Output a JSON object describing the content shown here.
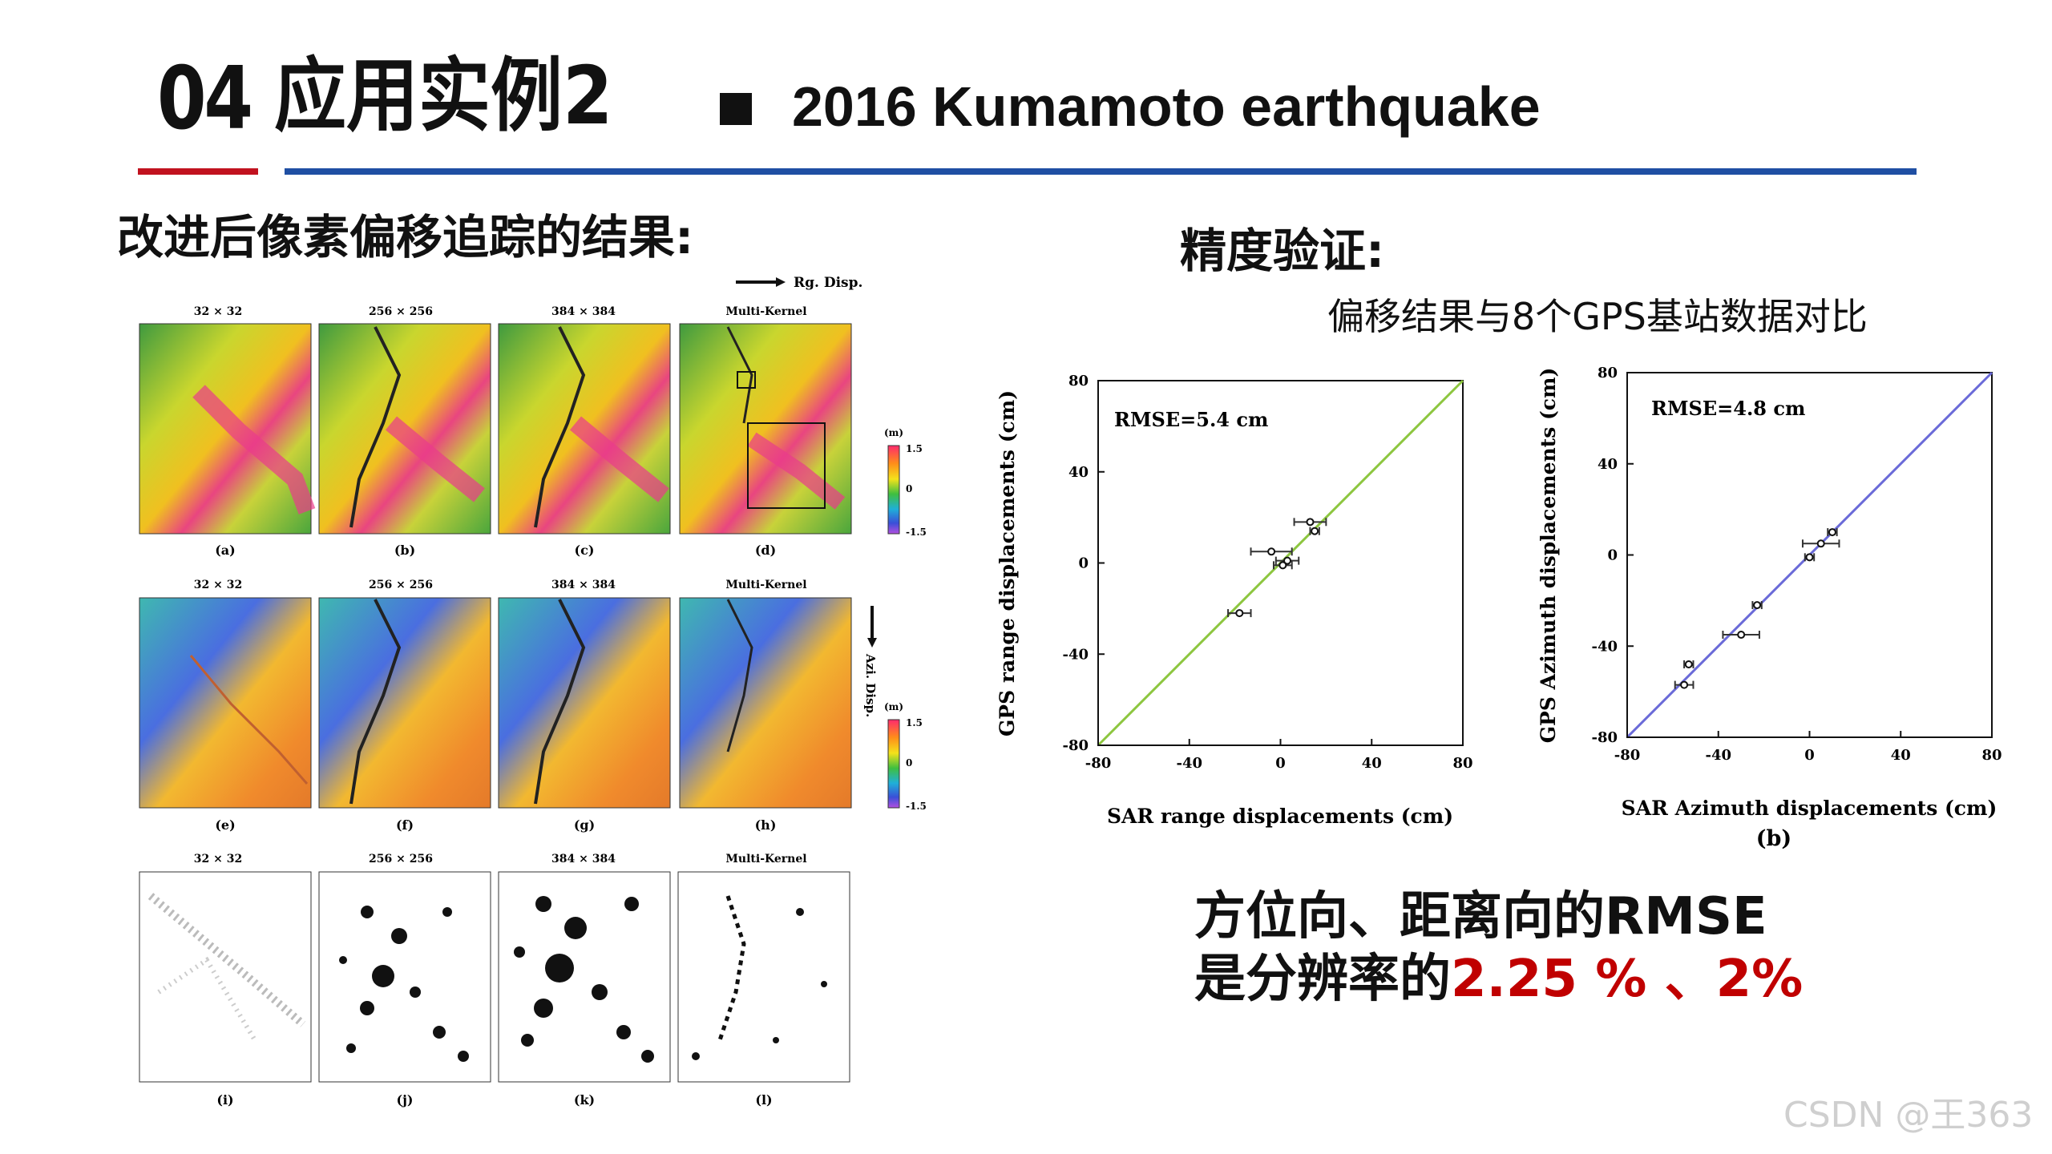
{
  "header": {
    "section_number": "04",
    "section_title": "应用实例2",
    "subtitle": "2016 Kumamoto earthquake",
    "colors": {
      "red_rule": "#c1121f",
      "blue_rule": "#1f4fa3"
    }
  },
  "left": {
    "heading": "改进后像素偏移追踪的结果:",
    "figure": {
      "rg_disp_label": "Rg. Disp.",
      "az_disp_label": "Azi. Disp.",
      "column_titles": [
        "32 × 32",
        "256 × 256",
        "384 × 384",
        "Multi-Kernel"
      ],
      "row1_labels": [
        "(a)",
        "(b)",
        "(c)",
        "(d)"
      ],
      "row2_labels": [
        "(e)",
        "(f)",
        "(g)",
        "(h)"
      ],
      "row3_labels": [
        "(i)",
        "(j)",
        "(k)",
        "(l)"
      ],
      "colorbar_unit": "(m)",
      "colorbar_max": "1.5",
      "colorbar_mid": "0",
      "colorbar_min": "-1.5"
    }
  },
  "right": {
    "heading": "精度验证:",
    "subheading": "偏移结果与8个GPS基站数据对比",
    "plot_a": {
      "rmse": "RMSE=5.4 cm",
      "ylabel": "GPS range displacements (cm)",
      "xlabel": "SAR range displacements (cm)",
      "xticks": [
        "-80",
        "-40",
        "0",
        "40",
        "80"
      ],
      "yticks": [
        "80",
        "40",
        "0",
        "-40",
        "-80"
      ],
      "line_color": "#8dc63f",
      "points": [
        {
          "x": 13,
          "y": 18,
          "xerr": 7
        },
        {
          "x": 15,
          "y": 14,
          "xerr": 2
        },
        {
          "x": -4,
          "y": 5,
          "xerr": 9
        },
        {
          "x": 3,
          "y": 1,
          "xerr": 5
        },
        {
          "x": 1,
          "y": -1,
          "xerr": 4
        },
        {
          "x": -18,
          "y": -22,
          "xerr": 5
        }
      ]
    },
    "plot_b": {
      "rmse": "RMSE=4.8 cm",
      "ylabel": "GPS Azimuth displacements (cm)",
      "xlabel": "SAR Azimuth displacements (cm)",
      "label": "(b)",
      "xticks": [
        "-80",
        "-40",
        "0",
        "40",
        "80"
      ],
      "yticks": [
        "80",
        "40",
        "0",
        "-40",
        "-80"
      ],
      "line_color": "#6a6ad8",
      "points": [
        {
          "x": 10,
          "y": 10,
          "xerr": 2
        },
        {
          "x": 5,
          "y": 5,
          "xerr": 8
        },
        {
          "x": 0,
          "y": -1,
          "xerr": 2
        },
        {
          "x": -23,
          "y": -22,
          "xerr": 2
        },
        {
          "x": -30,
          "y": -35,
          "xerr": 8
        },
        {
          "x": -53,
          "y": -48,
          "xerr": 2
        },
        {
          "x": -55,
          "y": -57,
          "xerr": 4
        }
      ]
    }
  },
  "conclusion": {
    "line1": "方位向、距离向的RMSE",
    "line2_prefix": "是分辨率的",
    "line2_value": "2.25 % 、2%"
  },
  "watermark": "CSDN @王363"
}
